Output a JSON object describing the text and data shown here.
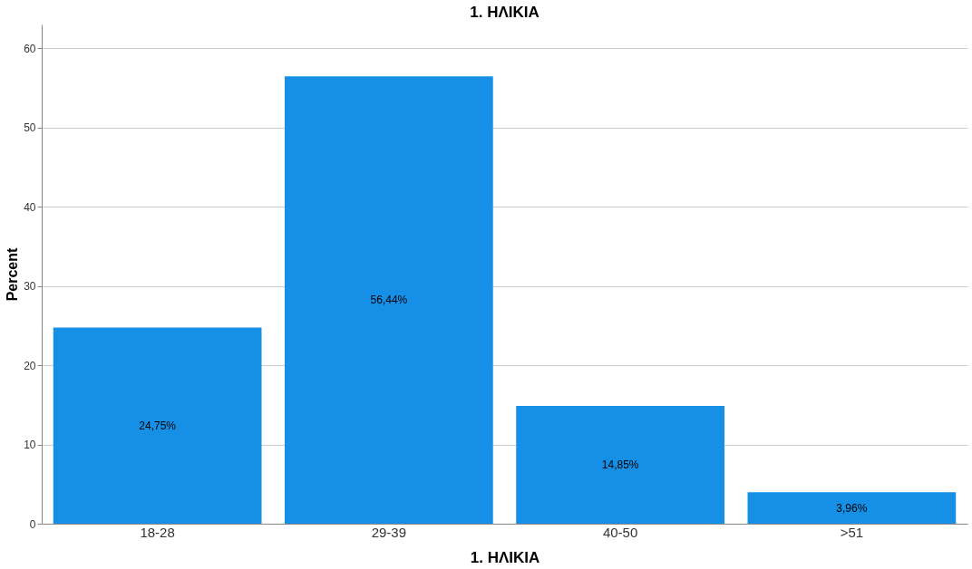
{
  "chart_data": {
    "type": "bar",
    "title": "1. ΗΛΙΚΙΑ",
    "xlabel": "1. ΗΛΙΚΙΑ",
    "ylabel": "Percent",
    "categories": [
      "18-28",
      "29-39",
      "40-50",
      ">51"
    ],
    "values": [
      24.75,
      56.44,
      14.85,
      3.96
    ],
    "value_labels": [
      "24,75%",
      "56,44%",
      "14,85%",
      "3,96%"
    ],
    "color": "#1690e6",
    "ylim": [
      0,
      63
    ],
    "yticks": [
      0,
      10,
      20,
      30,
      40,
      50,
      60
    ],
    "grid": "y"
  }
}
